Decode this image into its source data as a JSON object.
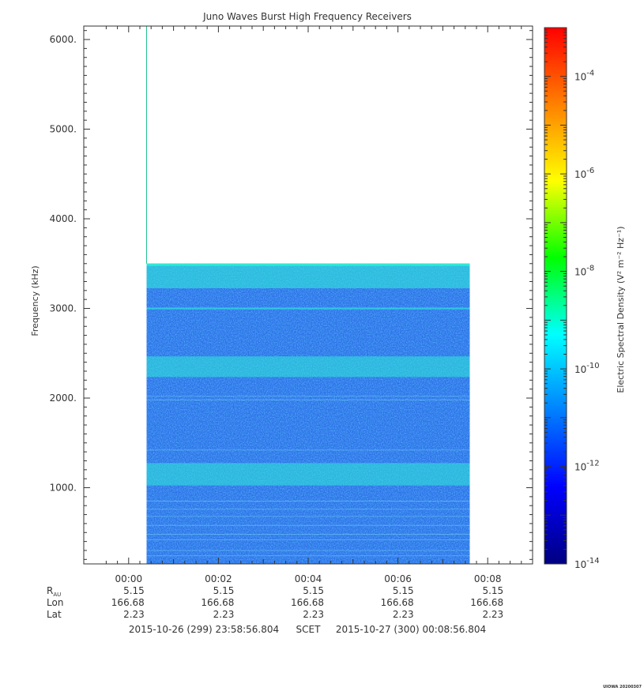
{
  "colors": {
    "colormap": [
      "#000080",
      "#0000ff",
      "#0080ff",
      "#00ffff",
      "#00ff00",
      "#ffff00",
      "#ff8000",
      "#ff0000"
    ],
    "spectrogram_base": "#2a6ee6",
    "spectrogram_bright": "#2ee8d8",
    "vertical_line": "#20c090",
    "axis": "#333333"
  },
  "chart_data": {
    "type": "heatmap",
    "title": "Juno Waves Burst High Frequency Receivers",
    "ylabel": "Frequency (kHz)",
    "ylim": [
      150,
      6150
    ],
    "yticks": [
      {
        "value": 1000,
        "label": "1000."
      },
      {
        "value": 2000,
        "label": "2000."
      },
      {
        "value": 3000,
        "label": "3000."
      },
      {
        "value": 4000,
        "label": "4000."
      },
      {
        "value": 5000,
        "label": "5000."
      },
      {
        "value": 6000,
        "label": "6000."
      }
    ],
    "xlim_minutes": [
      -1.0,
      9.0
    ],
    "xticks": [
      {
        "value": 0,
        "label": "00:00"
      },
      {
        "value": 2,
        "label": "00:02"
      },
      {
        "value": 4,
        "label": "00:04"
      },
      {
        "value": 6,
        "label": "00:06"
      },
      {
        "value": 8,
        "label": "00:08"
      }
    ],
    "data_extent": {
      "x_start_minutes": 0.4,
      "x_end_minutes": 7.6,
      "f_min_khz": 150,
      "f_max_khz": 3500
    },
    "vertical_line_minutes": 0.4,
    "intensity_bands_khz": [
      {
        "center": 3350,
        "width": 250,
        "level": 0.8
      },
      {
        "center": 2350,
        "width": 230,
        "level": 0.75
      },
      {
        "center": 1150,
        "width": 250,
        "level": 0.75
      },
      {
        "center": 3000,
        "width": 20,
        "level": 0.9
      }
    ],
    "colorbar": {
      "label": "Electric Spectral Density (V² m⁻² Hz⁻¹)",
      "log_range": [
        -14,
        -3
      ],
      "ticks": [
        {
          "base": "10",
          "exp": "-14"
        },
        {
          "base": "10",
          "exp": "-12"
        },
        {
          "base": "10",
          "exp": "-10"
        },
        {
          "base": "10",
          "exp": "-8"
        },
        {
          "base": "10",
          "exp": "-6"
        },
        {
          "base": "10",
          "exp": "-4"
        }
      ]
    },
    "ephemeris": {
      "rows": [
        {
          "label": "R",
          "sub": "AU",
          "values": [
            "5.15",
            "5.15",
            "5.15",
            "5.15",
            "5.15"
          ]
        },
        {
          "label": "Lon",
          "sub": "",
          "values": [
            "166.68",
            "166.68",
            "166.68",
            "166.68",
            "166.68"
          ]
        },
        {
          "label": "Lat",
          "sub": "",
          "values": [
            "2.23",
            "2.23",
            "2.23",
            "2.23",
            "2.23"
          ]
        }
      ]
    },
    "time_range": {
      "start": "2015-10-26 (299) 23:58:56.804",
      "frame": "SCET",
      "end": "2015-10-27 (300) 00:08:56.804"
    },
    "footer": "UIOWA 20200307"
  }
}
